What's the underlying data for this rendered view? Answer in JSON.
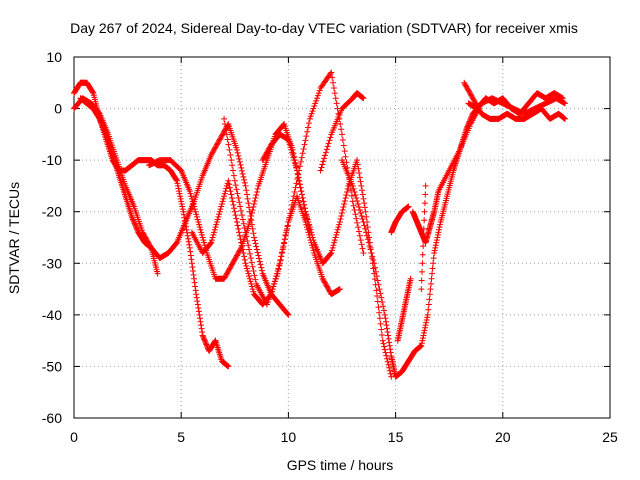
{
  "chart_data": {
    "type": "scatter",
    "title": "Day 267 of 2024, Sidereal Day-to-day VTEC variation (SDTVAR) for receiver xmis",
    "xlabel": "GPS time / hours",
    "ylabel": "SDTVAR / TECUs",
    "xlim": [
      0,
      25
    ],
    "ylim": [
      -60,
      10
    ],
    "xticks": [
      0,
      5,
      10,
      15,
      20,
      25
    ],
    "yticks": [
      -60,
      -50,
      -40,
      -30,
      -20,
      -10,
      0,
      10
    ],
    "grid": true,
    "marker": "+",
    "color": "#ff0000",
    "series": [
      {
        "x": [
          0.0,
          0.3,
          0.6,
          0.9,
          1.2,
          1.5,
          1.8,
          2.1,
          2.4,
          2.7,
          3.0,
          3.3,
          3.6,
          3.9,
          4.2,
          4.5,
          4.8,
          5.1,
          5.4,
          5.7,
          6.0,
          6.3,
          6.6,
          6.9,
          7.2
        ],
        "y": [
          3,
          5,
          5,
          3,
          -2,
          -6,
          -10,
          -12,
          -12,
          -11,
          -10,
          -10,
          -10,
          -11,
          -11,
          -12,
          -14,
          -20,
          -27,
          -36,
          -44,
          -47,
          -45,
          -49,
          -50
        ]
      },
      {
        "x": [
          0.0,
          0.4,
          0.8,
          1.2,
          1.6,
          2.0,
          2.4,
          2.8,
          3.2,
          3.6,
          4.0,
          4.4,
          4.8,
          5.2,
          5.6,
          6.0,
          6.4,
          6.8,
          7.2,
          7.6,
          8.0,
          8.4,
          8.8,
          9.2,
          9.6,
          10.0
        ],
        "y": [
          0,
          2,
          1,
          -1,
          -5,
          -10,
          -15,
          -19,
          -24,
          -27,
          -29,
          -28,
          -26,
          -22,
          -18,
          -13,
          -9,
          -6,
          -3,
          -8,
          -15,
          -25,
          -32,
          -36,
          -38,
          -40
        ]
      },
      {
        "x": [
          0.3,
          0.6,
          0.9,
          1.2,
          1.5,
          1.8,
          2.1,
          2.4,
          2.7,
          3.0,
          3.3,
          3.6,
          3.9
        ],
        "y": [
          2,
          1,
          0,
          -2,
          -5,
          -9,
          -13,
          -17,
          -21,
          -24,
          -26,
          -27,
          -32
        ]
      },
      {
        "x": [
          3.5,
          4.0,
          4.5,
          5.0,
          5.4,
          5.8,
          6.2,
          6.6,
          7.0,
          7.4,
          7.8,
          8.2,
          8.6,
          9.0,
          9.4,
          9.8,
          10.2,
          10.6,
          11.0
        ],
        "y": [
          -11,
          -10,
          -10,
          -12,
          -16,
          -22,
          -28,
          -33,
          -33,
          -30,
          -27,
          -22,
          -15,
          -10,
          -5,
          -3,
          -8,
          -16,
          -24
        ]
      },
      {
        "x": [
          5.5,
          6.0,
          6.4,
          6.8,
          7.2,
          7.6,
          8.0,
          8.4,
          8.8,
          9.2,
          9.6,
          10.0,
          10.4,
          10.8,
          11.2,
          11.6,
          12.0,
          12.4
        ],
        "y": [
          -24,
          -28,
          -26,
          -20,
          -14,
          -22,
          -30,
          -36,
          -38,
          -36,
          -30,
          -22,
          -17,
          -22,
          -28,
          -33,
          -36,
          -35
        ]
      },
      {
        "x": [
          7.0,
          7.5,
          8.0,
          8.5,
          9.0,
          9.5,
          10.0,
          10.5,
          11.0,
          11.5,
          12.0,
          12.5,
          13.0,
          13.5
        ],
        "y": [
          -2,
          -14,
          -24,
          -34,
          -38,
          -32,
          -22,
          -12,
          -2,
          4,
          7,
          -5,
          -18,
          -28
        ]
      },
      {
        "x": [
          8.8,
          9.2,
          9.6,
          10.0,
          10.4,
          10.8,
          11.2,
          11.6,
          12.0,
          12.4,
          12.8,
          13.2,
          13.6,
          14.0,
          14.4,
          14.8
        ],
        "y": [
          -10,
          -7,
          -5,
          -6,
          -12,
          -20,
          -26,
          -30,
          -28,
          -22,
          -15,
          -10,
          -20,
          -32,
          -45,
          -52
        ]
      },
      {
        "x": [
          11.5,
          12.0,
          12.5,
          13.0,
          13.2,
          13.5
        ],
        "y": [
          -12,
          -5,
          0,
          2,
          3,
          2
        ]
      },
      {
        "x": [
          12.5,
          13.0,
          13.5,
          14.0,
          14.5,
          14.8,
          15.0,
          15.3,
          15.6,
          15.9,
          16.2,
          16.5,
          16.8,
          17.1,
          17.4,
          17.7,
          18.0,
          18.3,
          18.6,
          19.0
        ],
        "y": [
          -10,
          -15,
          -22,
          -30,
          -40,
          -48,
          -52,
          -51,
          -49,
          -47,
          -46,
          -40,
          -28,
          -22,
          -17,
          -12,
          -8,
          -4,
          -1,
          1
        ]
      },
      {
        "x": [
          14.8,
          15.0,
          15.3,
          15.6
        ],
        "y": [
          -24,
          -22,
          -20,
          -19
        ]
      },
      {
        "x": [
          15.1,
          15.3,
          15.5,
          15.7
        ],
        "y": [
          -45,
          -41,
          -37,
          -33
        ]
      },
      {
        "x": [
          16.2,
          16.4
        ],
        "y": [
          -35,
          -15
        ]
      },
      {
        "x": [
          15.8,
          16.0,
          16.2,
          16.4,
          16.6,
          16.8,
          17.0,
          17.5,
          18.0,
          18.5,
          19.0,
          19.5,
          20.0,
          20.5,
          21.0,
          21.5,
          22.0,
          22.5,
          22.9
        ],
        "y": [
          -20,
          -22,
          -24,
          -26,
          -23,
          -20,
          -16,
          -12,
          -8,
          -3,
          1,
          2,
          1,
          0,
          -1,
          0,
          1,
          2,
          1
        ]
      },
      {
        "x": [
          18.2,
          18.6,
          19.0,
          19.4,
          19.8,
          20.2,
          20.6,
          21.0,
          21.4,
          21.8,
          22.2,
          22.6,
          22.9
        ],
        "y": [
          5,
          2,
          -1,
          -2,
          -2,
          -1,
          -2,
          -2,
          -1,
          0,
          -2,
          -1,
          -2
        ]
      },
      {
        "x": [
          18.4,
          18.8,
          19.2,
          19.6,
          20.0,
          20.4,
          20.8,
          21.2,
          21.6,
          22.0,
          22.4,
          22.8
        ],
        "y": [
          1,
          0,
          2,
          1,
          2,
          0,
          -1,
          1,
          3,
          2,
          3,
          2
        ]
      }
    ]
  }
}
